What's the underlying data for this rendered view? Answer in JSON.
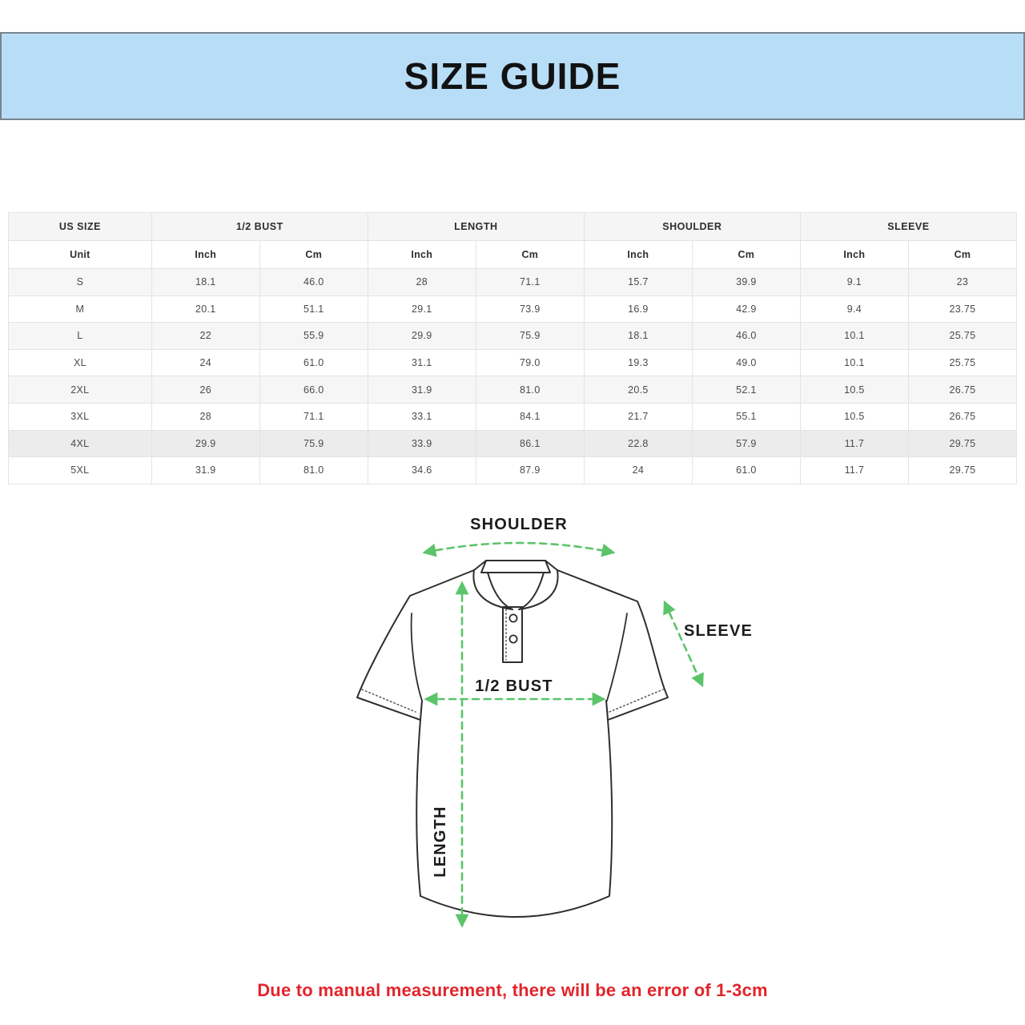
{
  "banner": {
    "title": "SIZE GUIDE",
    "bg_color": "#b8ddf7",
    "border_color": "#79838c"
  },
  "table": {
    "groups": [
      {
        "label": "US SIZE",
        "span": 1
      },
      {
        "label": "1/2 BUST",
        "span": 2
      },
      {
        "label": "LENGTH",
        "span": 2
      },
      {
        "label": "SHOULDER",
        "span": 2
      },
      {
        "label": "SLEEVE",
        "span": 2
      }
    ],
    "unit_row": [
      "Unit",
      "Inch",
      "Cm",
      "Inch",
      "Cm",
      "Inch",
      "Cm",
      "Inch",
      "Cm"
    ],
    "rows": [
      [
        "S",
        "18.1",
        "46.0",
        "28",
        "71.1",
        "15.7",
        "39.9",
        "9.1",
        "23"
      ],
      [
        "M",
        "20.1",
        "51.1",
        "29.1",
        "73.9",
        "16.9",
        "42.9",
        "9.4",
        "23.75"
      ],
      [
        "L",
        "22",
        "55.9",
        "29.9",
        "75.9",
        "18.1",
        "46.0",
        "10.1",
        "25.75"
      ],
      [
        "XL",
        "24",
        "61.0",
        "31.1",
        "79.0",
        "19.3",
        "49.0",
        "10.1",
        "25.75"
      ],
      [
        "2XL",
        "26",
        "66.0",
        "31.9",
        "81.0",
        "20.5",
        "52.1",
        "10.5",
        "26.75"
      ],
      [
        "3XL",
        "28",
        "71.1",
        "33.1",
        "84.1",
        "21.7",
        "55.1",
        "10.5",
        "26.75"
      ],
      [
        "4XL",
        "29.9",
        "75.9",
        "33.9",
        "86.1",
        "22.8",
        "57.9",
        "11.7",
        "29.75"
      ],
      [
        "5XL",
        "31.9",
        "81.0",
        "34.6",
        "87.9",
        "24",
        "61.0",
        "11.7",
        "29.75"
      ]
    ]
  },
  "diagram": {
    "arrow_color": "#5bc46a",
    "labels": {
      "shoulder": "SHOULDER",
      "sleeve": "SLEEVE",
      "bust": "1/2 BUST",
      "length": "LENGTH"
    }
  },
  "note": {
    "text": "Due to manual measurement, there will be an error of 1-3cm",
    "color": "#e3242b"
  }
}
